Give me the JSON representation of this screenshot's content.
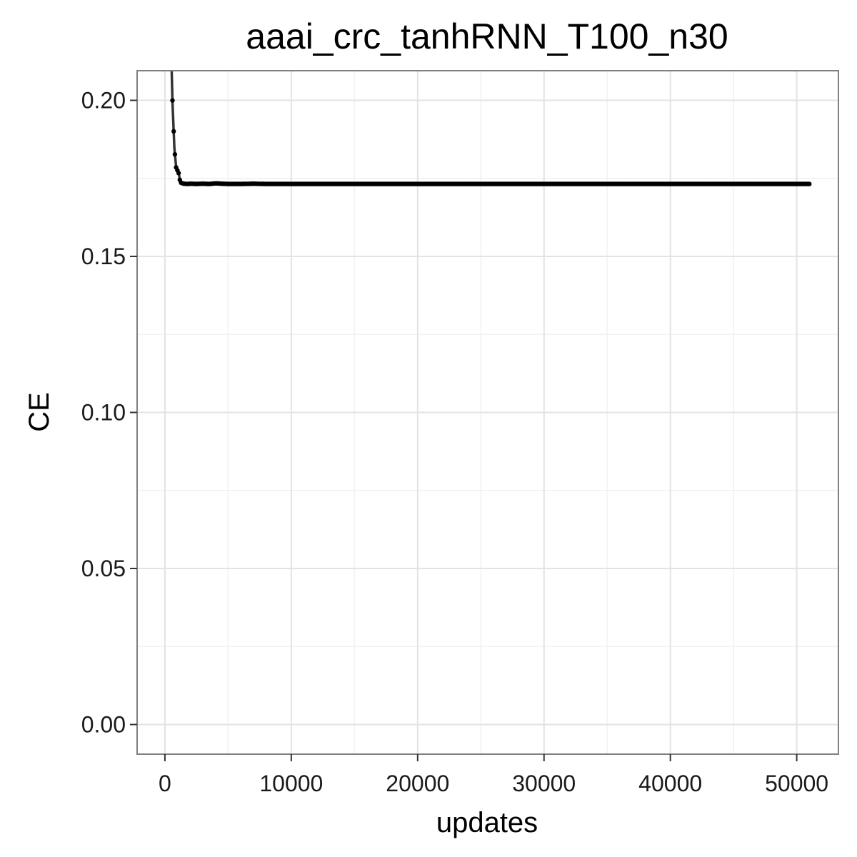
{
  "chart_data": {
    "type": "line",
    "title": "aaai_crc_tanhRNN_T100_n30",
    "xlabel": "updates",
    "ylabel": "CE",
    "xlim": [
      -2200,
      53300
    ],
    "ylim": [
      -0.0095,
      0.2095
    ],
    "x_ticks": [
      0,
      10000,
      20000,
      30000,
      40000,
      50000
    ],
    "x_tick_labels": [
      "0",
      "10000",
      "20000",
      "30000",
      "40000",
      "50000"
    ],
    "y_ticks": [
      0.0,
      0.05,
      0.1,
      0.15,
      0.2
    ],
    "y_tick_labels": [
      "0.00",
      "0.05",
      "0.10",
      "0.15",
      "0.20"
    ],
    "x_minor_ticks": [
      5000,
      15000,
      25000,
      35000,
      45000
    ],
    "y_minor_ticks": [
      0.025,
      0.075,
      0.125,
      0.175
    ],
    "grid": true,
    "legend": "none",
    "series": [
      {
        "color": "#333333",
        "x": [
          500,
          600,
          750,
          900,
          1000,
          1100,
          1200,
          1300,
          1500,
          1800,
          2000,
          2500,
          3000,
          3500,
          4000,
          5000,
          6000,
          7000,
          8000,
          9000,
          10000,
          12000,
          14000,
          16000,
          18000,
          20000,
          22000,
          24000,
          26000,
          28000,
          30000,
          32000,
          34000,
          36000,
          38000,
          40000,
          42000,
          44000,
          46000,
          48000,
          50000,
          51000
        ],
        "y": [
          0.215,
          0.1995,
          0.1845,
          0.178,
          0.1775,
          0.1765,
          0.174,
          0.1735,
          0.1733,
          0.1732,
          0.1733,
          0.1732,
          0.1733,
          0.1732,
          0.1734,
          0.1732,
          0.1732,
          0.1733,
          0.1732,
          0.1732,
          0.1732,
          0.1732,
          0.1732,
          0.1732,
          0.1732,
          0.1732,
          0.1732,
          0.1732,
          0.1732,
          0.1732,
          0.1732,
          0.1732,
          0.1732,
          0.1732,
          0.1732,
          0.1732,
          0.1732,
          0.1732,
          0.1732,
          0.1732,
          0.1732,
          0.1732
        ]
      }
    ]
  }
}
